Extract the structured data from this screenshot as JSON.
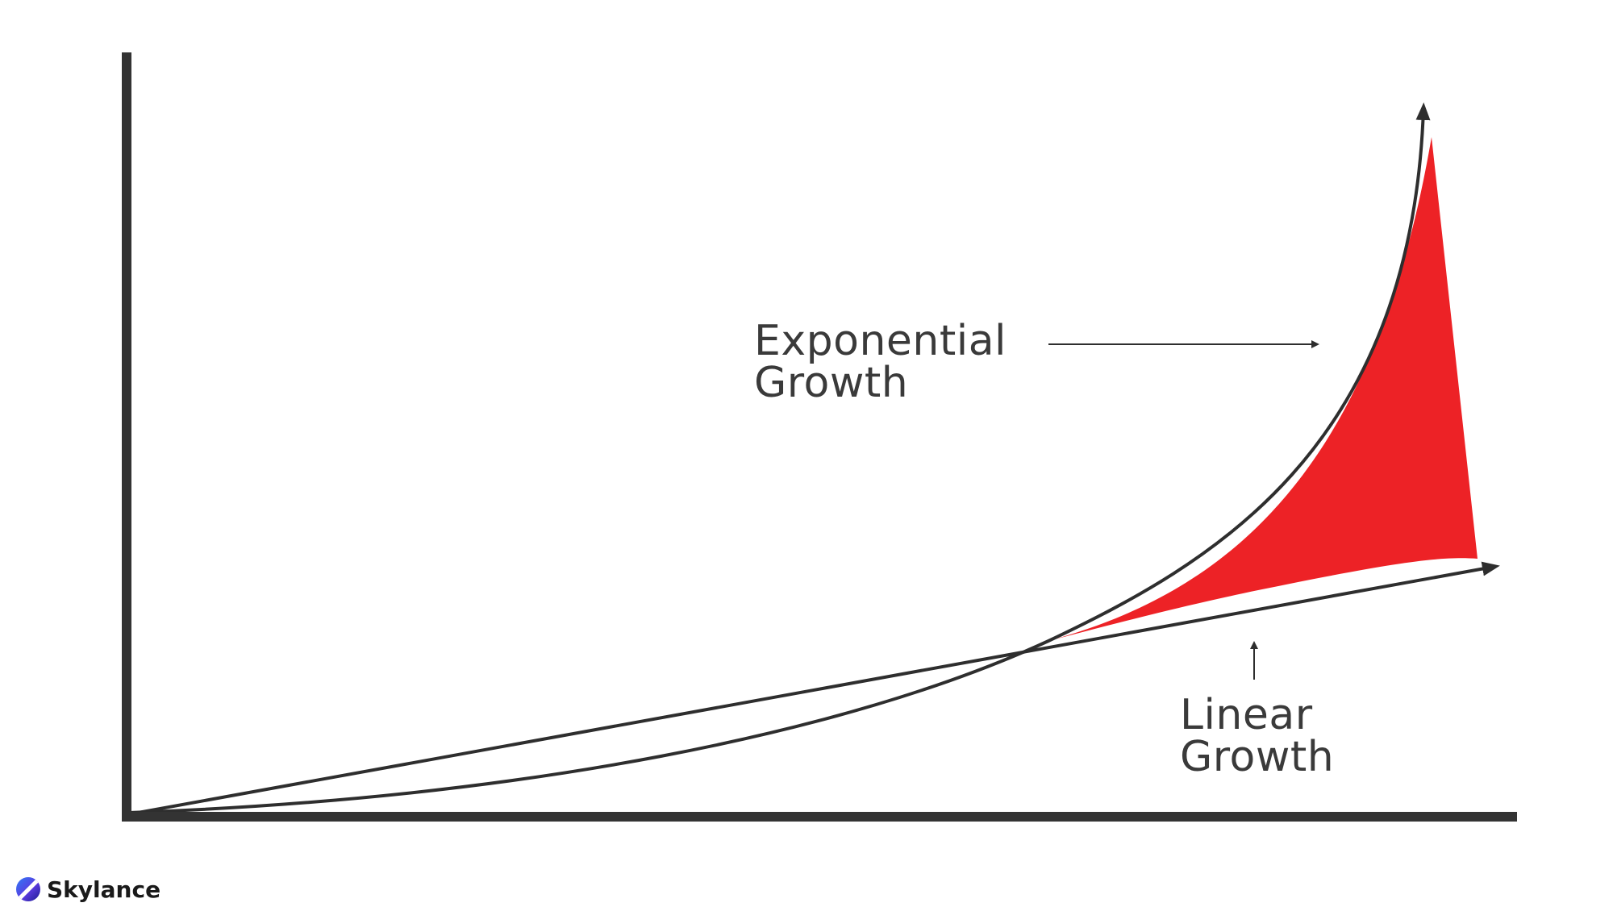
{
  "labels": {
    "exponential": [
      "Exponential",
      "Growth"
    ],
    "linear": [
      "Linear",
      "Growth"
    ]
  },
  "brand": {
    "name": "Skylance",
    "icon": "skylance-logo-icon"
  },
  "colors": {
    "axis": "#333333",
    "curve": "#2e2e2e",
    "gap_fill": "#ed2226",
    "text": "#3a3a3a",
    "background": "#ffffff"
  }
}
